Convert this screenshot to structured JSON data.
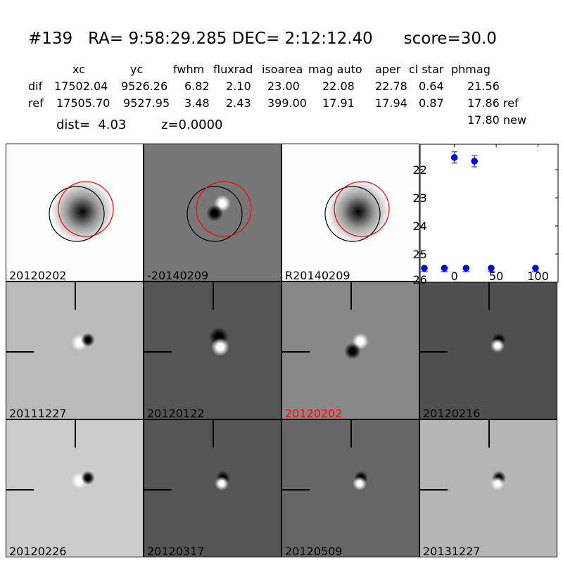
{
  "header": {
    "title": "#139   RA= 9:58:29.285 DEC= 2:12:12.40      score=30.0",
    "columns": [
      "xc",
      "yc",
      "fwhm",
      "fluxrad",
      "isoarea",
      "mag auto",
      "aper",
      "cl star",
      "phmag"
    ],
    "rows": [
      {
        "label": "dif",
        "values": [
          "17502.04",
          "9526.26",
          "6.82",
          "2.10",
          "23.00",
          "22.08",
          "22.78",
          "0.64",
          "21.56"
        ]
      },
      {
        "label": "ref",
        "values": [
          "17505.70",
          "9527.95",
          "3.48",
          "2.43",
          "399.00",
          "17.91",
          "17.94",
          "0.87",
          "17.86 ref"
        ]
      }
    ],
    "extra_phmag": "17.80 new",
    "dist": "dist=  4.03",
    "z": "z=0.0000"
  },
  "stamps": [
    {
      "label": "20120202",
      "background": "#fdfdfd",
      "kind": "ref",
      "circles": true
    },
    {
      "label": "-20140209",
      "background": "#777777",
      "kind": "diff",
      "circles": true
    },
    {
      "label": "R20140209",
      "background": "#fdfdfd",
      "kind": "ref",
      "circles": true
    },
    null,
    {
      "label": "20111227",
      "background": "#bababa",
      "kind": "dipole"
    },
    {
      "label": "20120122",
      "background": "#555555",
      "kind": "dipole2"
    },
    {
      "label": "20120202",
      "background": "#888888",
      "kind": "diff",
      "label_color": "#ff0000"
    },
    {
      "label": "20120216",
      "background": "#505050",
      "kind": "dipole3"
    },
    {
      "label": "20120226",
      "background": "#cccccc",
      "kind": "dipole"
    },
    {
      "label": "20120317",
      "background": "#555555",
      "kind": "dipole3"
    },
    {
      "label": "20120509",
      "background": "#666666",
      "kind": "dipole3"
    },
    {
      "label": "20131227",
      "background": "#b5b5b5",
      "kind": "dipole3"
    }
  ],
  "chart_data": {
    "type": "scatter",
    "x": [
      -36,
      -12,
      0,
      14,
      24,
      44,
      97
    ],
    "y": [
      25.5,
      25.5,
      21.57,
      25.5,
      21.7,
      25.5,
      25.5
    ],
    "xlim": [
      -41,
      124
    ],
    "ylim": [
      26,
      21.1
    ],
    "xticks": [
      "0",
      "50",
      "100"
    ],
    "xtick_values": [
      0,
      50,
      100
    ],
    "yticks": [
      "22",
      "23",
      "24",
      "25",
      "26"
    ],
    "ytick_values": [
      22,
      23,
      24,
      25,
      26
    ],
    "marker_color": "#0000ff"
  }
}
